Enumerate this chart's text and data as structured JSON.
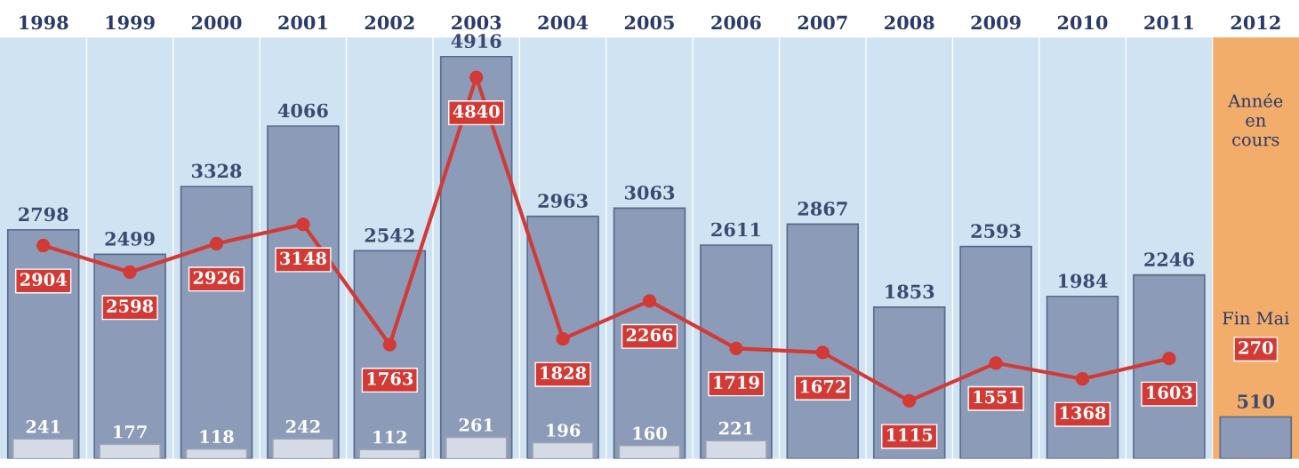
{
  "chart_data": {
    "type": "bar",
    "categories": [
      "1998",
      "1999",
      "2000",
      "2001",
      "2002",
      "2003",
      "2004",
      "2005",
      "2006",
      "2007",
      "2008",
      "2009",
      "2010",
      "2011",
      "2012"
    ],
    "series": [
      {
        "color": "#8b9bb8",
        "values": [
          2798,
          2499,
          3328,
          4066,
          2542,
          4916,
          2963,
          3063,
          2611,
          2867,
          1853,
          2593,
          1984,
          2246,
          510
        ]
      },
      {
        "type": "bar",
        "color": "#d5dbe6",
        "values": [
          241,
          177,
          118,
          242,
          112,
          261,
          196,
          160,
          221,
          null,
          null,
          null,
          null,
          null,
          null
        ]
      },
      {
        "type": "line",
        "axis": "y2",
        "color": "#d23a36",
        "values": [
          2904,
          2598,
          2926,
          3148,
          1763,
          4840,
          1828,
          2266,
          1719,
          1672,
          1115,
          1551,
          1368,
          1603,
          null
        ]
      }
    ],
    "ylim": [
      0,
      5150
    ],
    "y2lim": [
      450,
      5300
    ],
    "tick_labels": "x",
    "data_labels": true,
    "marker": "circle",
    "grid": false,
    "legend": false,
    "bands": [
      {
        "axis": "x",
        "from": "2012",
        "to": "2012",
        "color": "#f2ad6b"
      }
    ],
    "annotations": [
      "Année\nen\ncours",
      "Fin Mai",
      "270"
    ]
  }
}
